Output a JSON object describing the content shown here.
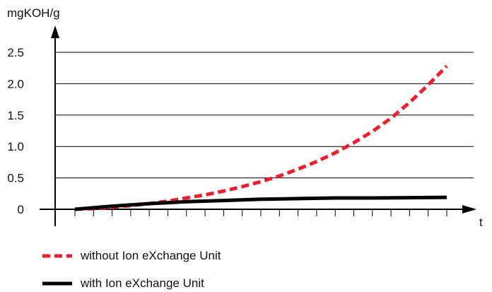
{
  "chart_data": {
    "type": "line",
    "ylabel": "mgKOH/g",
    "xlabel": "t",
    "ylim": [
      0,
      2.5
    ],
    "yticks": [
      "0",
      "0.5",
      "1.0",
      "1.5",
      "2.0",
      "2.5"
    ],
    "ytick_values": [
      0,
      0.5,
      1.0,
      1.5,
      2.0,
      2.5
    ],
    "xtick_count": 20,
    "x_range": [
      0,
      20
    ],
    "grid": "horizontal",
    "legend_position": "bottom-left",
    "series": [
      {
        "name": "without Ion eXchange Unit",
        "color": "#e8202f",
        "style": "dashed",
        "x": [
          0,
          1,
          2,
          3,
          4,
          5,
          6,
          7,
          8,
          9,
          10,
          11,
          12,
          13,
          14,
          15,
          16,
          17,
          18,
          19,
          20
        ],
        "values": [
          0,
          0.01,
          0.03,
          0.06,
          0.09,
          0.13,
          0.18,
          0.23,
          0.29,
          0.36,
          0.44,
          0.53,
          0.64,
          0.76,
          0.9,
          1.06,
          1.24,
          1.45,
          1.7,
          1.98,
          2.28
        ]
      },
      {
        "name": "with Ion eXchange Unit",
        "color": "#000000",
        "style": "solid",
        "x": [
          0,
          2,
          4,
          6,
          8,
          10,
          12,
          14,
          16,
          18,
          20
        ],
        "values": [
          0,
          0.05,
          0.09,
          0.12,
          0.14,
          0.16,
          0.17,
          0.18,
          0.18,
          0.185,
          0.19
        ]
      }
    ]
  }
}
